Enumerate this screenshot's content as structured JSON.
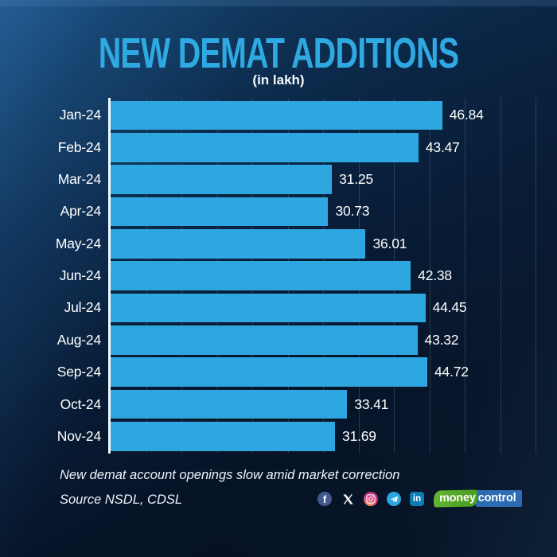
{
  "header": {
    "title": "NEW DEMAT ADDITIONS",
    "subtitle": "(in lakh)"
  },
  "chart_data": {
    "type": "bar",
    "orientation": "horizontal",
    "title": "NEW DEMAT ADDITIONS",
    "subtitle": "(in lakh)",
    "categories": [
      "Jan-24",
      "Feb-24",
      "Mar-24",
      "Apr-24",
      "May-24",
      "Jun-24",
      "Jul-24",
      "Aug-24",
      "Sep-24",
      "Oct-24",
      "Nov-24"
    ],
    "values": [
      46.84,
      43.47,
      31.25,
      30.73,
      36.01,
      42.38,
      44.45,
      43.32,
      44.72,
      33.41,
      31.69
    ],
    "xlabel": "",
    "ylabel": "",
    "xlim": [
      0,
      60
    ],
    "gridline_step": 5,
    "grid": true,
    "legend": "none",
    "bar_color": "#2ea7e0",
    "value_decimals": 2
  },
  "footer": {
    "note": "New demat account openings slow amid market correction",
    "source": "Source NSDL, CDSL",
    "social_icons": [
      "facebook-icon",
      "x-icon",
      "instagram-icon",
      "telegram-icon",
      "linkedin-icon"
    ],
    "brand": {
      "part1": "money",
      "part2": "control"
    }
  },
  "colors": {
    "title": "#2fa9e1",
    "bar": "#2ea7e0",
    "text": "#ffffff",
    "axis": "#f5f8fb",
    "background_top_left": "#16497a",
    "background_bottom": "#040e1d",
    "gridline": "rgba(150,175,205,0.22)"
  }
}
